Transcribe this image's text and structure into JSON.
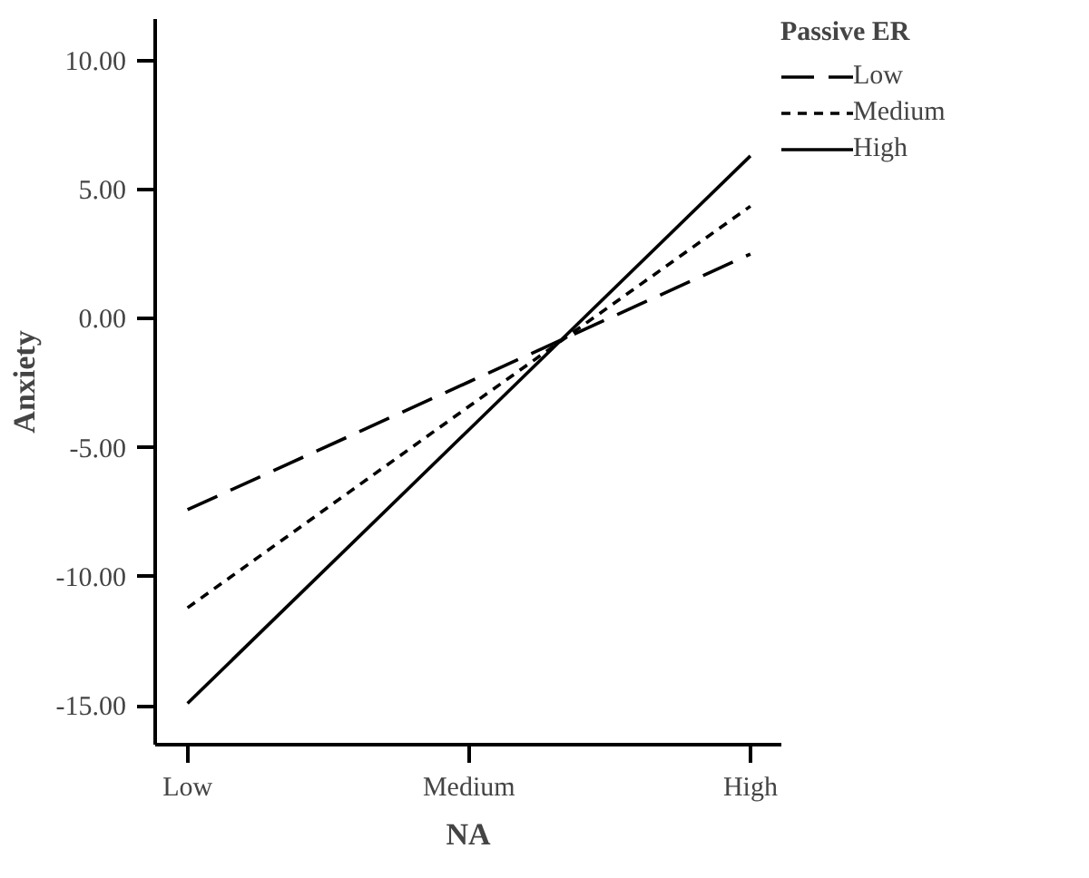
{
  "chart_data": {
    "type": "line",
    "xlabel": "NA",
    "ylabel": "Anxiety",
    "legend_title": "Passive ER",
    "categories": [
      "Low",
      "Medium",
      "High"
    ],
    "series": [
      {
        "name": "Low",
        "color": "#000000",
        "line_style": "dashed",
        "values": [
          -7.4,
          -2.45,
          2.5
        ]
      },
      {
        "name": "Medium",
        "color": "#000000",
        "line_style": "dotted",
        "values": [
          -11.2,
          -3.4,
          4.35
        ]
      },
      {
        "name": "High",
        "color": "#000000",
        "line_style": "solid",
        "values": [
          -14.9,
          -4.3,
          6.3
        ]
      }
    ],
    "ylim": [
      -16.5,
      11.6
    ],
    "yticks": [
      {
        "value": -15,
        "label": "-15.00"
      },
      {
        "value": -10,
        "label": "-10.00"
      },
      {
        "value": -5,
        "label": "-5.00"
      },
      {
        "value": 0,
        "label": "0.00"
      },
      {
        "value": 5,
        "label": "5.00"
      },
      {
        "value": 10,
        "label": "10.00"
      }
    ],
    "grid": false,
    "legend": "top right",
    "marker": "none"
  }
}
